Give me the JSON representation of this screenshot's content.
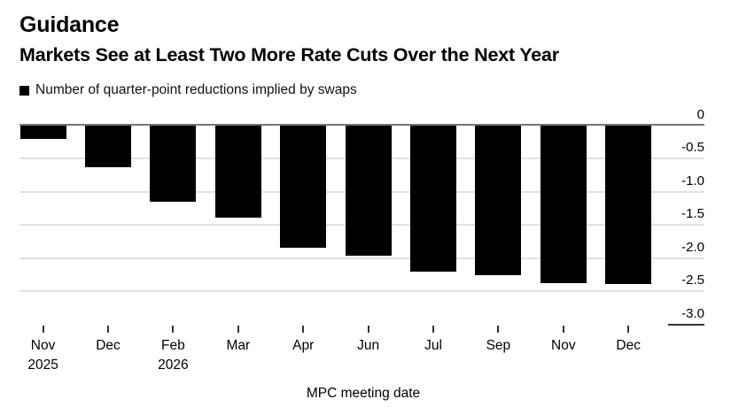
{
  "header": {
    "title": "Guidance",
    "subtitle": "Markets See at Least Two More Rate Cuts Over the Next Year"
  },
  "legend": {
    "label": "Number of quarter-point reductions implied by swaps",
    "marker_color": "#000000"
  },
  "chart_data": {
    "type": "bar",
    "title": "Guidance",
    "subtitle": "Markets See at Least Two More Rate Cuts Over the Next Year",
    "legend_entries": [
      "Number of quarter-point reductions implied by swaps"
    ],
    "legend_position": "top-left",
    "categories": [
      "Nov",
      "Dec",
      "Feb",
      "Mar",
      "Apr",
      "Jun",
      "Jul",
      "Sep",
      "Nov",
      "Dec"
    ],
    "year_markers": [
      {
        "index": 0,
        "year": "2025"
      },
      {
        "index": 2,
        "year": "2026"
      }
    ],
    "values": [
      -0.21,
      -0.63,
      -1.15,
      -1.39,
      -1.84,
      -1.96,
      -2.2,
      -2.26,
      -2.38,
      -2.39
    ],
    "xlabel": "MPC meeting date",
    "ylabel": "",
    "ylim": [
      -3.0,
      0
    ],
    "yticks": [
      0,
      -0.5,
      -1.0,
      -1.5,
      -2.0,
      -2.5,
      -3.0
    ],
    "ytick_labels": [
      "0",
      "-0.5",
      "-1.0",
      "-1.5",
      "-2.0",
      "-2.5",
      "-3.0"
    ],
    "yaxis_side": "right",
    "grid": "horizontal",
    "bar_color": "#000000",
    "colors": {
      "gridline": "#e2e2e2",
      "zero_line": "#757575",
      "tick": "#333333",
      "text": "#000000",
      "background": "#ffffff"
    }
  }
}
